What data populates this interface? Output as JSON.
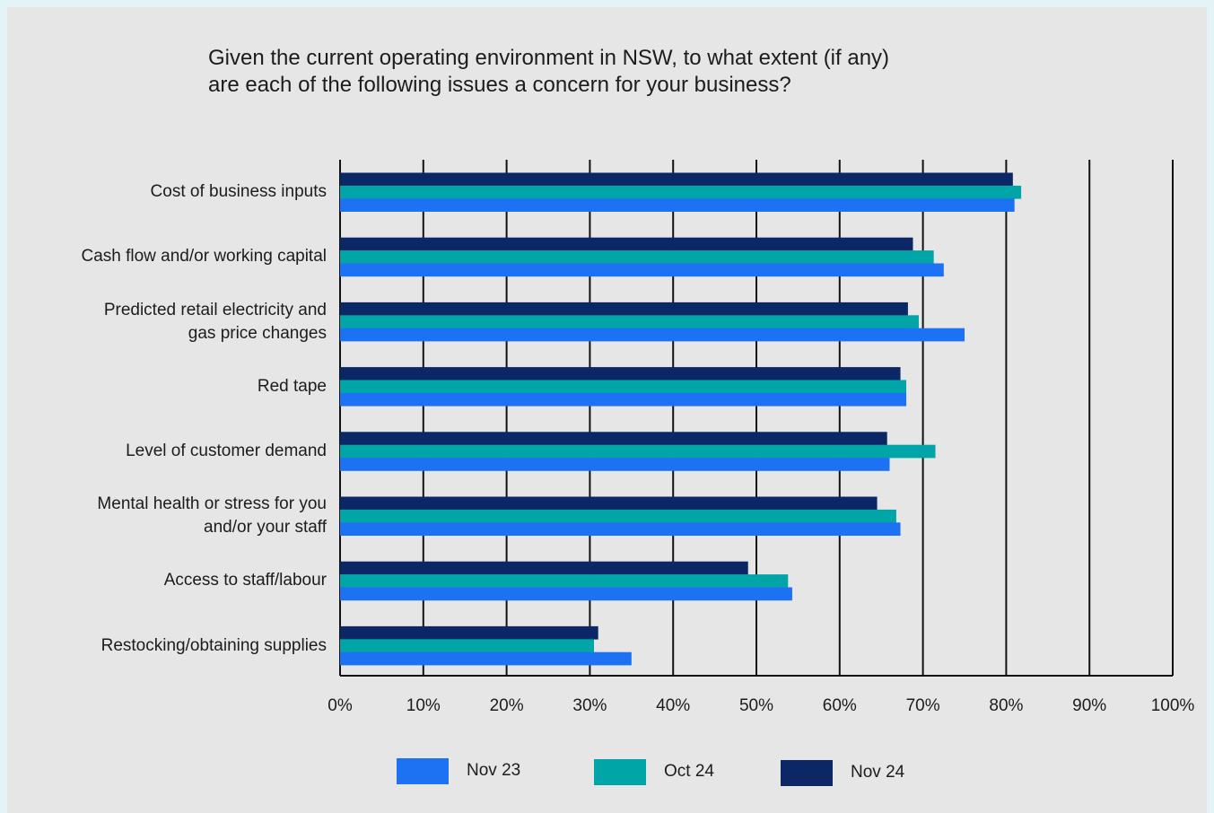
{
  "title": {
    "line1": "Given the current operating environment in NSW, to what extent (if any)",
    "line2": "are each of the following issues a concern for your business?"
  },
  "chart_data": {
    "type": "bar",
    "orientation": "horizontal",
    "categories": [
      "Cost of business inputs",
      "Cash flow and/or working capital",
      "Predicted retail electricity and gas price changes",
      "Red tape",
      "Level of customer demand",
      "Mental health or stress for you and/or your staff",
      "Access to staff/labour",
      "Restocking/obtaining supplies"
    ],
    "category_lines": [
      [
        "Cost of business inputs"
      ],
      [
        "Cash flow and/or working capital"
      ],
      [
        "Predicted retail electricity and",
        "gas price changes"
      ],
      [
        "Red tape"
      ],
      [
        "Level of customer demand"
      ],
      [
        "Mental health or stress for you",
        "and/or your staff"
      ],
      [
        "Access to staff/labour"
      ],
      [
        "Restocking/obtaining supplies"
      ]
    ],
    "series": [
      {
        "name": "Nov 23",
        "color": "#1c72f2",
        "values": [
          81,
          72.5,
          75,
          68,
          66,
          67.3,
          54.3,
          35
        ]
      },
      {
        "name": "Oct 24",
        "color": "#00a5a8",
        "values": [
          81.8,
          71.3,
          69.5,
          68,
          71.5,
          66.8,
          53.8,
          30.5
        ]
      },
      {
        "name": "Nov 24",
        "color": "#0b2765",
        "values": [
          80.8,
          68.8,
          68.2,
          67.3,
          65.7,
          64.5,
          49,
          31
        ]
      }
    ],
    "xlim": [
      0,
      100
    ],
    "xticks": [
      "0%",
      "10%",
      "20%",
      "30%",
      "40%",
      "50%",
      "60%",
      "70%",
      "80%",
      "90%",
      "100%"
    ],
    "xlabel": "",
    "ylabel": "",
    "grid": "vertical",
    "legend_position": "bottom"
  }
}
